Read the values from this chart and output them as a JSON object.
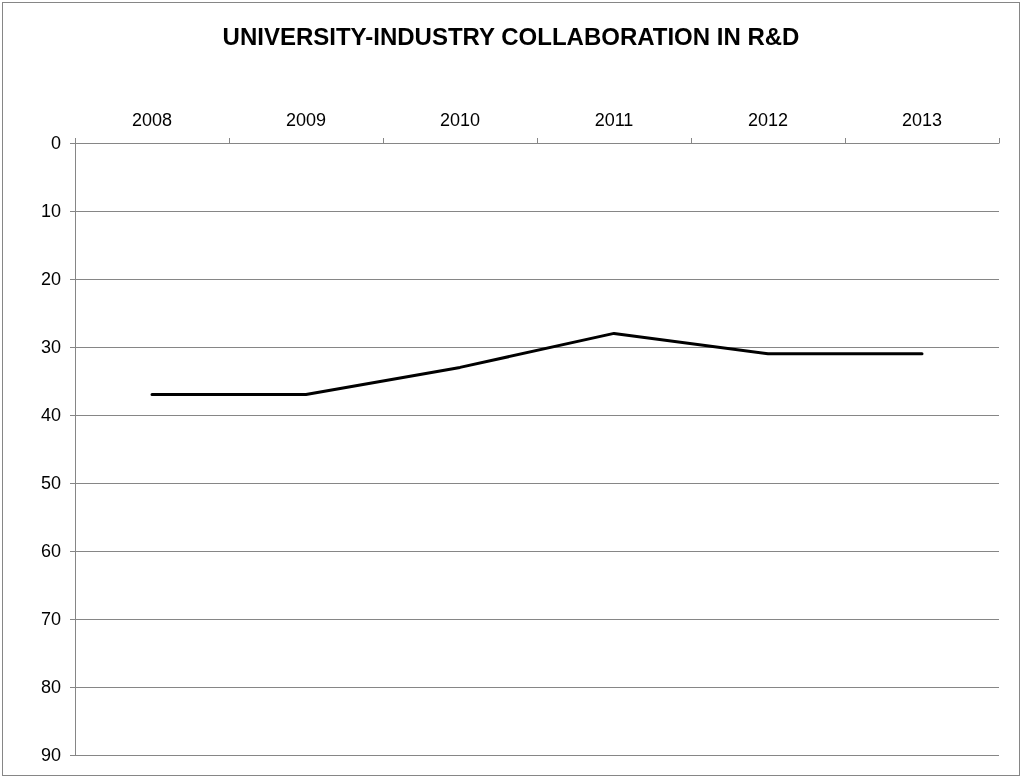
{
  "chart_data": {
    "type": "line",
    "title": "UNIVERSITY-INDUSTRY COLLABORATION IN R&D",
    "categories": [
      "2008",
      "2009",
      "2010",
      "2011",
      "2012",
      "2013"
    ],
    "series": [
      {
        "color": "#000000",
        "values": [
          37,
          37,
          33,
          28,
          31,
          31
        ]
      }
    ],
    "ylim": [
      90,
      0
    ],
    "yticks": [
      0,
      10,
      20,
      30,
      40,
      50,
      60,
      70,
      80,
      90
    ],
    "grid": "y",
    "marker": "none",
    "line_style": "solid"
  }
}
